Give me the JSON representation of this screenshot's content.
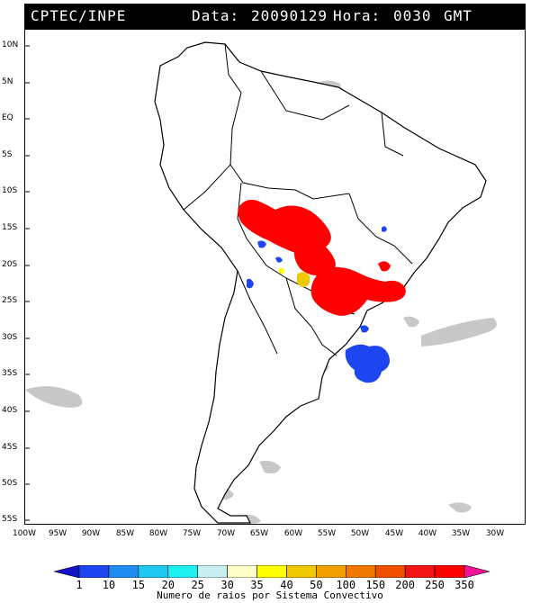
{
  "header": {
    "source": "CPTEC/INPE",
    "date_label": "Data:",
    "date_value": "20090129",
    "time_label": "Hora:",
    "time_value": "0030",
    "tz": "GMT"
  },
  "lat_labels": [
    "10N",
    "5N",
    "EQ",
    "5S",
    "10S",
    "15S",
    "20S",
    "25S",
    "30S",
    "35S",
    "40S",
    "45S",
    "50S",
    "55S"
  ],
  "lon_labels": [
    "100W",
    "95W",
    "90W",
    "85W",
    "80W",
    "75W",
    "70W",
    "65W",
    "60W",
    "55W",
    "50W",
    "45W",
    "40W",
    "35W",
    "30W"
  ],
  "colorbar": {
    "values": [
      "1",
      "10",
      "15",
      "20",
      "25",
      "30",
      "35",
      "40",
      "50",
      "100",
      "150",
      "200",
      "250",
      "350"
    ],
    "colors": [
      "#1414c8",
      "#1e46f0",
      "#1e8cf0",
      "#1ec8f0",
      "#1ef0f0",
      "#c8f0f0",
      "#ffffc8",
      "#ffff00",
      "#f0c800",
      "#f0a000",
      "#f07800",
      "#f05000",
      "#f01414",
      "#ff0000",
      "#f01496"
    ],
    "caption": "Numero de raios por Sistema Convectivo"
  },
  "colors": {
    "land_fill": "#ffffff",
    "coast": "#000000",
    "cloud": "#c8c8c8",
    "cell_high": "#ff0000",
    "cell_low": "#1e46f0",
    "cell_mid": "#f0c800",
    "cell_yellow": "#ffff00"
  }
}
